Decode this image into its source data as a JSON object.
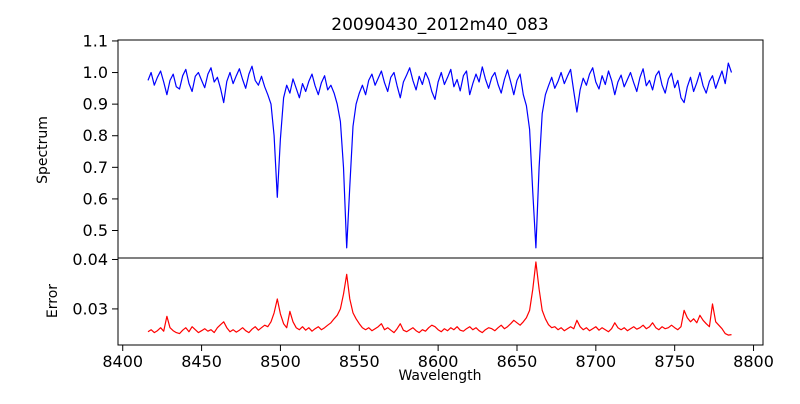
{
  "figure": {
    "background": "#ffffff",
    "spine_color": "#000000"
  },
  "chart_data": [
    {
      "type": "line",
      "title": "20090430_2012m40_083",
      "ylabel": "Spectrum",
      "xlabel": "",
      "grid": false,
      "legend": null,
      "xlim": [
        8397,
        8806
      ],
      "ylim": [
        0.413,
        1.103
      ],
      "yticks": [
        "0.5",
        "0.6",
        "0.7",
        "0.8",
        "0.9",
        "1.0",
        "1.1"
      ],
      "series": [
        {
          "name": "spectrum",
          "color": "#0000ff",
          "x_start": 8416,
          "x_step": 2,
          "values": [
            0.975,
            1.0,
            0.96,
            0.985,
            1.005,
            0.97,
            0.93,
            0.975,
            0.995,
            0.955,
            0.948,
            0.99,
            1.01,
            0.965,
            0.94,
            0.988,
            1.0,
            0.975,
            0.952,
            0.995,
            1.015,
            0.97,
            0.985,
            0.95,
            0.905,
            0.972,
            1.0,
            0.965,
            0.99,
            1.012,
            0.978,
            0.95,
            0.995,
            1.02,
            0.975,
            0.96,
            0.988,
            0.955,
            0.93,
            0.9,
            0.8,
            0.605,
            0.79,
            0.92,
            0.96,
            0.935,
            0.98,
            0.95,
            0.92,
            0.965,
            0.94,
            0.972,
            0.995,
            0.958,
            0.93,
            0.968,
            0.99,
            0.945,
            0.96,
            0.935,
            0.9,
            0.845,
            0.7,
            0.445,
            0.64,
            0.83,
            0.9,
            0.935,
            0.96,
            0.93,
            0.975,
            0.995,
            0.96,
            0.982,
            1.005,
            0.968,
            0.94,
            0.985,
            1.0,
            0.958,
            0.92,
            0.97,
            0.992,
            1.015,
            0.975,
            0.945,
            0.988,
            0.962,
            1.0,
            0.978,
            0.94,
            0.915,
            0.97,
            1.0,
            0.962,
            0.985,
            1.01,
            0.955,
            0.978,
            0.942,
            0.99,
            1.005,
            0.93,
            0.965,
            0.995,
            0.97,
            1.018,
            0.98,
            0.95,
            0.985,
            1.0,
            0.962,
            0.935,
            0.978,
            1.008,
            0.97,
            0.93,
            0.975,
            0.995,
            0.93,
            0.895,
            0.82,
            0.62,
            0.445,
            0.7,
            0.87,
            0.93,
            0.958,
            0.985,
            0.95,
            0.972,
            1.0,
            0.965,
            0.988,
            1.01,
            0.94,
            0.875,
            0.945,
            0.982,
            0.96,
            0.995,
            1.015,
            0.97,
            0.948,
            0.99,
            0.962,
            1.005,
            0.975,
            0.93,
            0.97,
            0.992,
            0.955,
            0.978,
            1.0,
            0.968,
            0.94,
            0.985,
            1.012,
            0.958,
            0.975,
            0.945,
            0.99,
            1.005,
            0.96,
            0.935,
            0.98,
            0.998,
            0.952,
            0.975,
            0.92,
            0.905,
            0.955,
            0.985,
            0.94,
            0.968,
            1.0,
            0.958,
            0.935,
            0.972,
            0.99,
            0.95,
            0.978,
            1.005,
            0.965,
            1.03,
            1.0
          ]
        }
      ],
      "annotations": {
        "absorption_lines": [
          {
            "wavelength": 8498,
            "depth": 0.605
          },
          {
            "wavelength": 8542,
            "depth": 0.445
          },
          {
            "wavelength": 8662,
            "depth": 0.445
          }
        ]
      }
    },
    {
      "type": "line",
      "title": "",
      "ylabel": "Error",
      "xlabel": "Wavelength",
      "grid": false,
      "legend": null,
      "xlim": [
        8397,
        8806
      ],
      "ylim": [
        0.0227,
        0.0403
      ],
      "yticks": [
        "0.03",
        "0.04"
      ],
      "xticks": [
        "8400",
        "8450",
        "8500",
        "8550",
        "8600",
        "8650",
        "8700",
        "8750",
        "8800"
      ],
      "series": [
        {
          "name": "error",
          "color": "#ff0000",
          "x_start": 8416,
          "x_step": 2,
          "values": [
            0.0254,
            0.0258,
            0.0252,
            0.0256,
            0.0262,
            0.0255,
            0.0285,
            0.0262,
            0.0256,
            0.0252,
            0.025,
            0.0257,
            0.0262,
            0.0254,
            0.0264,
            0.0258,
            0.0252,
            0.0256,
            0.026,
            0.0255,
            0.0258,
            0.0252,
            0.0262,
            0.0268,
            0.0274,
            0.0262,
            0.0254,
            0.0258,
            0.0253,
            0.0257,
            0.0262,
            0.0256,
            0.0252,
            0.0259,
            0.0264,
            0.0257,
            0.0262,
            0.0267,
            0.0264,
            0.0274,
            0.0292,
            0.032,
            0.029,
            0.027,
            0.0262,
            0.0295,
            0.0274,
            0.0262,
            0.0258,
            0.0264,
            0.0257,
            0.0262,
            0.0255,
            0.026,
            0.0264,
            0.0258,
            0.0262,
            0.0267,
            0.0272,
            0.028,
            0.0287,
            0.03,
            0.033,
            0.037,
            0.032,
            0.0292,
            0.028,
            0.027,
            0.0262,
            0.0258,
            0.0262,
            0.0256,
            0.026,
            0.0264,
            0.027,
            0.0258,
            0.0262,
            0.0257,
            0.0252,
            0.026,
            0.027,
            0.0257,
            0.0254,
            0.0258,
            0.0262,
            0.0256,
            0.0252,
            0.0258,
            0.0255,
            0.0262,
            0.0267,
            0.0264,
            0.0258,
            0.0254,
            0.026,
            0.0256,
            0.0262,
            0.0258,
            0.0264,
            0.0257,
            0.0255,
            0.026,
            0.0264,
            0.0258,
            0.0262,
            0.0256,
            0.0252,
            0.0258,
            0.0262,
            0.026,
            0.0256,
            0.0262,
            0.0267,
            0.026,
            0.0264,
            0.027,
            0.0277,
            0.0272,
            0.0267,
            0.0274,
            0.0282,
            0.0297,
            0.034,
            0.0395,
            0.034,
            0.0297,
            0.028,
            0.0268,
            0.0262,
            0.0264,
            0.0258,
            0.0262,
            0.0256,
            0.026,
            0.0264,
            0.026,
            0.0277,
            0.0264,
            0.0258,
            0.0262,
            0.0256,
            0.026,
            0.0264,
            0.0257,
            0.0262,
            0.0258,
            0.0254,
            0.026,
            0.0272,
            0.0262,
            0.0258,
            0.0262,
            0.0256,
            0.026,
            0.0264,
            0.0259,
            0.0262,
            0.0267,
            0.026,
            0.0264,
            0.0272,
            0.0262,
            0.0258,
            0.0264,
            0.026,
            0.0262,
            0.0267,
            0.0262,
            0.0258,
            0.0264,
            0.0297,
            0.0282,
            0.0274,
            0.028,
            0.0272,
            0.0287,
            0.0277,
            0.027,
            0.0264,
            0.031,
            0.0274,
            0.0267,
            0.026,
            0.025,
            0.0247,
            0.0248
          ]
        }
      ]
    }
  ]
}
